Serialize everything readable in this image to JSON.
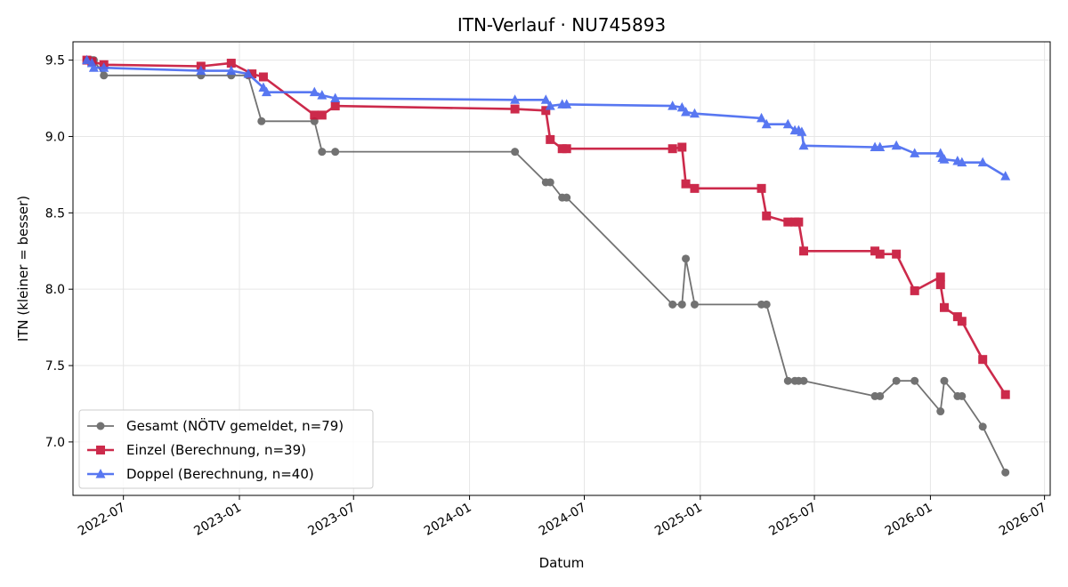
{
  "chart_data": {
    "type": "line",
    "title": "ITN-Verlauf · NU745893",
    "xlabel": "Datum",
    "ylabel": "ITN  (kleiner = besser)",
    "ylim": [
      6.65,
      9.62
    ],
    "xlim": [
      "2022-04-12",
      "2026-07-10"
    ],
    "y_ticks": [
      7.0,
      7.5,
      8.0,
      8.5,
      9.0,
      9.5
    ],
    "x_ticks": [
      "2022-07",
      "2023-01",
      "2023-07",
      "2024-01",
      "2024-07",
      "2025-01",
      "2025-07",
      "2026-01",
      "2026-07"
    ],
    "grid": true,
    "legend_position": "lower-left",
    "series": [
      {
        "name": "Gesamt (NÖTV gemeldet, n=79)",
        "color": "#444444",
        "marker": "circle",
        "points": [
          [
            "2022-05-04",
            9.5
          ],
          [
            "2022-05-08",
            9.5
          ],
          [
            "2022-05-12",
            9.5
          ],
          [
            "2022-05-15",
            9.5
          ],
          [
            "2022-05-31",
            9.4
          ],
          [
            "2022-11-01",
            9.4
          ],
          [
            "2022-12-19",
            9.4
          ],
          [
            "2023-01-15",
            9.4
          ],
          [
            "2023-02-05",
            9.1
          ],
          [
            "2023-04-30",
            9.1
          ],
          [
            "2023-05-12",
            8.9
          ],
          [
            "2023-06-02",
            8.9
          ],
          [
            "2024-03-13",
            8.9
          ],
          [
            "2024-05-01",
            8.7
          ],
          [
            "2024-05-08",
            8.7
          ],
          [
            "2024-05-27",
            8.6
          ],
          [
            "2024-06-03",
            8.6
          ],
          [
            "2024-11-18",
            7.9
          ],
          [
            "2024-12-03",
            7.9
          ],
          [
            "2024-12-09",
            8.2
          ],
          [
            "2024-12-23",
            7.9
          ],
          [
            "2025-04-08",
            7.9
          ],
          [
            "2025-04-16",
            7.9
          ],
          [
            "2025-05-20",
            7.4
          ],
          [
            "2025-05-31",
            7.4
          ],
          [
            "2025-06-06",
            7.4
          ],
          [
            "2025-06-14",
            7.4
          ],
          [
            "2025-10-05",
            7.3
          ],
          [
            "2025-10-13",
            7.3
          ],
          [
            "2025-11-08",
            7.4
          ],
          [
            "2025-12-07",
            7.4
          ],
          [
            "2026-01-17",
            7.2
          ],
          [
            "2026-01-23",
            7.4
          ],
          [
            "2026-02-13",
            7.3
          ],
          [
            "2026-02-20",
            7.3
          ],
          [
            "2026-03-25",
            7.1
          ],
          [
            "2026-04-30",
            6.8
          ]
        ]
      },
      {
        "name": "Einzel (Berechnung, n=39)",
        "color": "#c8193c",
        "marker": "square",
        "points": [
          [
            "2022-05-04",
            9.5
          ],
          [
            "2022-05-12",
            9.49
          ],
          [
            "2022-05-31",
            9.47
          ],
          [
            "2022-11-01",
            9.46
          ],
          [
            "2022-12-19",
            9.48
          ],
          [
            "2023-01-21",
            9.41
          ],
          [
            "2023-02-08",
            9.39
          ],
          [
            "2023-04-30",
            9.14
          ],
          [
            "2023-05-12",
            9.14
          ],
          [
            "2023-06-02",
            9.2
          ],
          [
            "2024-03-13",
            9.18
          ],
          [
            "2024-05-01",
            9.17
          ],
          [
            "2024-05-08",
            8.98
          ],
          [
            "2024-05-27",
            8.92
          ],
          [
            "2024-06-03",
            8.92
          ],
          [
            "2024-11-18",
            8.92
          ],
          [
            "2024-12-03",
            8.93
          ],
          [
            "2024-12-09",
            8.69
          ],
          [
            "2024-12-23",
            8.66
          ],
          [
            "2025-04-08",
            8.66
          ],
          [
            "2025-04-16",
            8.48
          ],
          [
            "2025-05-20",
            8.44
          ],
          [
            "2025-05-31",
            8.44
          ],
          [
            "2025-06-06",
            8.44
          ],
          [
            "2025-06-14",
            8.25
          ],
          [
            "2025-10-05",
            8.25
          ],
          [
            "2025-10-13",
            8.23
          ],
          [
            "2025-11-08",
            8.23
          ],
          [
            "2025-12-07",
            7.99
          ],
          [
            "2026-01-17",
            8.08
          ],
          [
            "2026-01-17",
            8.03
          ],
          [
            "2026-01-23",
            7.88
          ],
          [
            "2026-02-13",
            7.82
          ],
          [
            "2026-02-20",
            7.79
          ],
          [
            "2026-03-25",
            7.54
          ],
          [
            "2026-04-30",
            7.31
          ]
        ]
      },
      {
        "name": "Doppel (Berechnung, n=40)",
        "color": "#4a6cf0",
        "marker": "triangle",
        "points": [
          [
            "2022-05-04",
            9.5
          ],
          [
            "2022-05-12",
            9.48
          ],
          [
            "2022-05-15",
            9.45
          ],
          [
            "2022-05-31",
            9.45
          ],
          [
            "2022-11-01",
            9.43
          ],
          [
            "2022-12-19",
            9.43
          ],
          [
            "2023-01-15",
            9.41
          ],
          [
            "2023-02-08",
            9.32
          ],
          [
            "2023-02-13",
            9.29
          ],
          [
            "2023-04-30",
            9.29
          ],
          [
            "2023-05-12",
            9.27
          ],
          [
            "2023-06-02",
            9.25
          ],
          [
            "2024-03-13",
            9.24
          ],
          [
            "2024-05-01",
            9.24
          ],
          [
            "2024-05-08",
            9.2
          ],
          [
            "2024-05-27",
            9.21
          ],
          [
            "2024-06-03",
            9.21
          ],
          [
            "2024-11-18",
            9.2
          ],
          [
            "2024-12-03",
            9.19
          ],
          [
            "2024-12-09",
            9.16
          ],
          [
            "2024-12-23",
            9.15
          ],
          [
            "2025-04-08",
            9.12
          ],
          [
            "2025-04-16",
            9.08
          ],
          [
            "2025-05-20",
            9.08
          ],
          [
            "2025-05-31",
            9.04
          ],
          [
            "2025-06-06",
            9.04
          ],
          [
            "2025-06-11",
            9.03
          ],
          [
            "2025-06-14",
            8.94
          ],
          [
            "2025-10-05",
            8.93
          ],
          [
            "2025-10-13",
            8.93
          ],
          [
            "2025-11-08",
            8.94
          ],
          [
            "2025-12-07",
            8.89
          ],
          [
            "2026-01-17",
            8.89
          ],
          [
            "2026-01-20",
            8.86
          ],
          [
            "2026-01-23",
            8.85
          ],
          [
            "2026-02-13",
            8.84
          ],
          [
            "2026-02-20",
            8.83
          ],
          [
            "2026-03-25",
            8.83
          ],
          [
            "2026-04-30",
            8.74
          ]
        ]
      }
    ]
  }
}
